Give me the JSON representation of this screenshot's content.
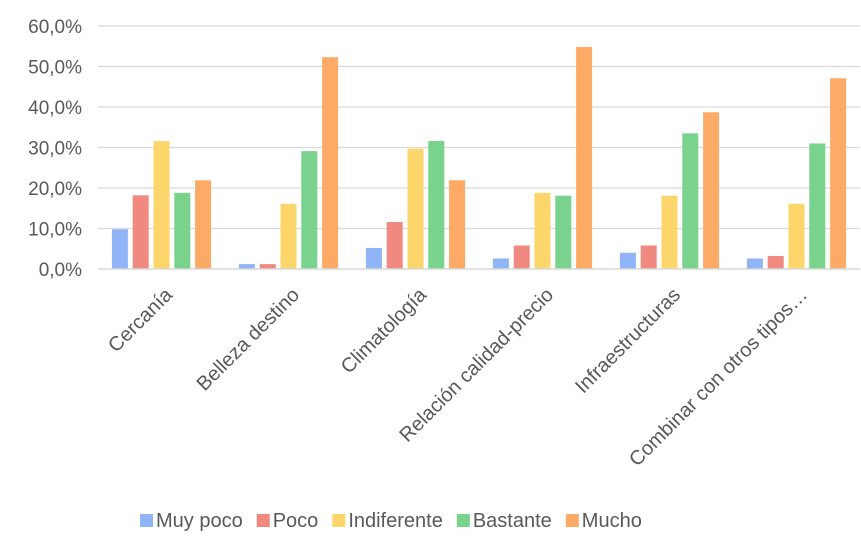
{
  "chart_data": {
    "type": "bar",
    "categories": [
      "Cercanía",
      "Belleza destino",
      "Climatología",
      "Relación calidad-precio",
      "Infraestructuras",
      "Combinar con otros tipos…"
    ],
    "series": [
      {
        "name": "Muy poco",
        "color": "#8FB4F8",
        "values": [
          9.8,
          1.2,
          5.2,
          2.6,
          4.0,
          2.6
        ]
      },
      {
        "name": "Poco",
        "color": "#F08A80",
        "values": [
          18.2,
          1.2,
          11.6,
          5.8,
          5.8,
          3.2
        ]
      },
      {
        "name": "Indiferente",
        "color": "#FCD66B",
        "values": [
          31.6,
          16.1,
          29.7,
          18.8,
          18.1,
          16.1
        ]
      },
      {
        "name": "Bastante",
        "color": "#79D38C",
        "values": [
          18.8,
          29.1,
          31.6,
          18.1,
          33.5,
          31.0
        ]
      },
      {
        "name": "Mucho",
        "color": "#FDAA67",
        "values": [
          21.9,
          52.3,
          21.9,
          54.8,
          38.7,
          47.1
        ]
      }
    ],
    "ylim": [
      0,
      60
    ],
    "yticks": [
      "0,0%",
      "10,0%",
      "20,0%",
      "30,0%",
      "40,0%",
      "50,0%",
      "60,0%"
    ],
    "grid": true,
    "legend_position": "bottom"
  }
}
